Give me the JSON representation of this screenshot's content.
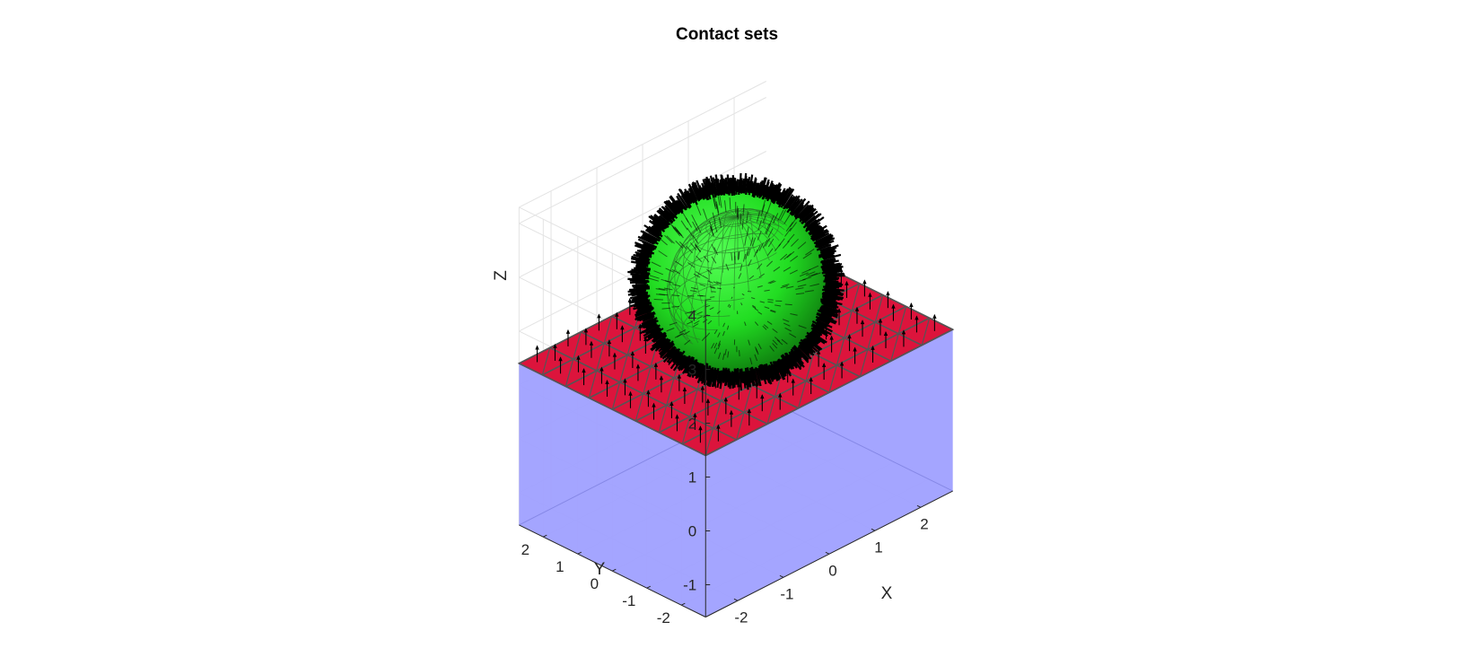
{
  "chart_data": {
    "type": "3d-surface",
    "title": "Contact sets",
    "xlabel": "X",
    "ylabel": "Y",
    "zlabel": "Z",
    "xlim": [
      -2.7,
      2.7
    ],
    "ylim": [
      -2.7,
      2.7
    ],
    "zlim": [
      -1.6,
      4.3
    ],
    "x_ticks": [
      "-2",
      "-1",
      "0",
      "1",
      "2"
    ],
    "y_ticks": [
      "-2",
      "-1",
      "0",
      "1",
      "2"
    ],
    "z_ticks": [
      "-1",
      "0",
      "1",
      "2",
      "3",
      "4"
    ],
    "grid": true,
    "objects": [
      {
        "name": "block",
        "kind": "box",
        "x_range": [
          -2.7,
          2.7
        ],
        "y_range": [
          -2.7,
          2.7
        ],
        "z_range": [
          -1.6,
          1.4
        ],
        "color": "#9fa0ff"
      },
      {
        "name": "contact-face",
        "kind": "plane",
        "z": 1.4,
        "color": "#dc143c",
        "edge_color": "#555555"
      },
      {
        "name": "sphere",
        "kind": "sphere",
        "center": [
          0,
          0,
          2.6
        ],
        "radius": 1.2,
        "color": "#22dd22",
        "normals_color": "#000000"
      }
    ],
    "colors": {
      "block": "#9fa0ff",
      "face": "#dc143c",
      "sphere": "#22dd22",
      "mesh": "#555555",
      "normals": "#000000"
    }
  }
}
